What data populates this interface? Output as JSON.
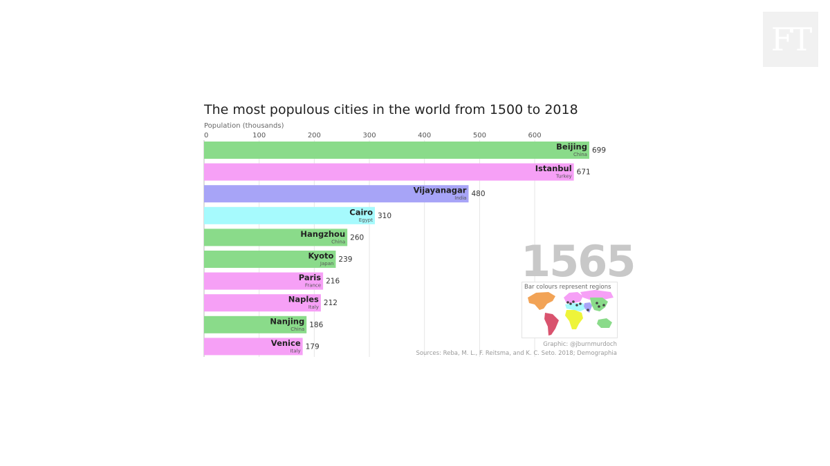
{
  "brand": {
    "logo_text": "FT",
    "logo_bg": "#f1f1f1"
  },
  "chart_data": {
    "type": "bar",
    "orientation": "horizontal",
    "title": "The most populous cities in the world from 1500 to 2018",
    "xlabel": "Population (thousands)",
    "xlim": [
      0,
      700
    ],
    "xticks": [
      0,
      100,
      200,
      300,
      400,
      500,
      600
    ],
    "grid": true,
    "year": "1565",
    "bars": [
      {
        "city": "Beijing",
        "country": "China",
        "value": 699,
        "color": "#8adb8a"
      },
      {
        "city": "Istanbul",
        "country": "Turkey",
        "value": 671,
        "color": "#f6a0f6"
      },
      {
        "city": "Vijayanagar",
        "country": "India",
        "value": 480,
        "color": "#a7a4f7"
      },
      {
        "city": "Cairo",
        "country": "Egypt",
        "value": 310,
        "color": "#a6fafd"
      },
      {
        "city": "Hangzhou",
        "country": "China",
        "value": 260,
        "color": "#8adb8a"
      },
      {
        "city": "Kyoto",
        "country": "Japan",
        "value": 239,
        "color": "#8adb8a"
      },
      {
        "city": "Paris",
        "country": "France",
        "value": 216,
        "color": "#f6a0f6"
      },
      {
        "city": "Naples",
        "country": "Italy",
        "value": 212,
        "color": "#f6a0f6"
      },
      {
        "city": "Nanjing",
        "country": "China",
        "value": 186,
        "color": "#8adb8a"
      },
      {
        "city": "Venice",
        "country": "Italy",
        "value": 179,
        "color": "#f6a0f6"
      }
    ],
    "legend": {
      "label": "Bar colours represent regions",
      "placement": "bottom-right",
      "regions": [
        {
          "region": "North America",
          "color": "#f2a356"
        },
        {
          "region": "South America",
          "color": "#d9536e"
        },
        {
          "region": "Europe",
          "color": "#f6a0f6"
        },
        {
          "region": "Africa",
          "color": "#eef43a"
        },
        {
          "region": "Middle East",
          "color": "#a6fafd"
        },
        {
          "region": "South Asia",
          "color": "#a7a4f7"
        },
        {
          "region": "East Asia and Oceania",
          "color": "#8adb8a"
        }
      ]
    },
    "credit": "Graphic: @jburnmurdoch",
    "sources": "Sources: Reba, M. L., F. Reitsma, and K. C. Seto. 2018; Demographia"
  }
}
